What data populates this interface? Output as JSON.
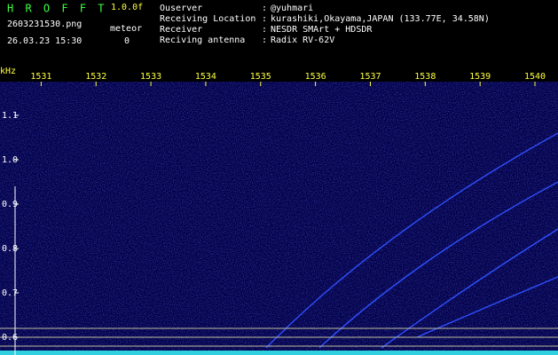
{
  "header": {
    "app": "H R O F F T",
    "version": "1.0.0f",
    "file": "2603231530.png",
    "mode": "meteor",
    "datetime": "26.03.23 15:30",
    "count": "0",
    "fields": [
      {
        "label": "Ouserver",
        "value": "@yuhmari"
      },
      {
        "label": "Receiving Location",
        "value": "kurashiki,Okayama,JAPAN (133.77E, 34.58N)"
      },
      {
        "label": "Receiver",
        "value": "NESDR SMArt + HDSDR"
      },
      {
        "label": "Reciving antenna",
        "value": "Radix RV-62V"
      }
    ]
  },
  "chart_data": {
    "type": "spectrogram",
    "ylabel": "kHz",
    "xlim": [
      1530.25,
      1540.42
    ],
    "xticks": [
      1531,
      1532,
      1533,
      1534,
      1535,
      1536,
      1537,
      1538,
      1539,
      1540
    ],
    "ylim": [
      0.56,
      1.176
    ],
    "yticks": [
      0.6,
      0.7,
      0.8,
      0.9,
      {
        "value": 1,
        "label": "1.0"
      },
      1.1
    ]
  }
}
